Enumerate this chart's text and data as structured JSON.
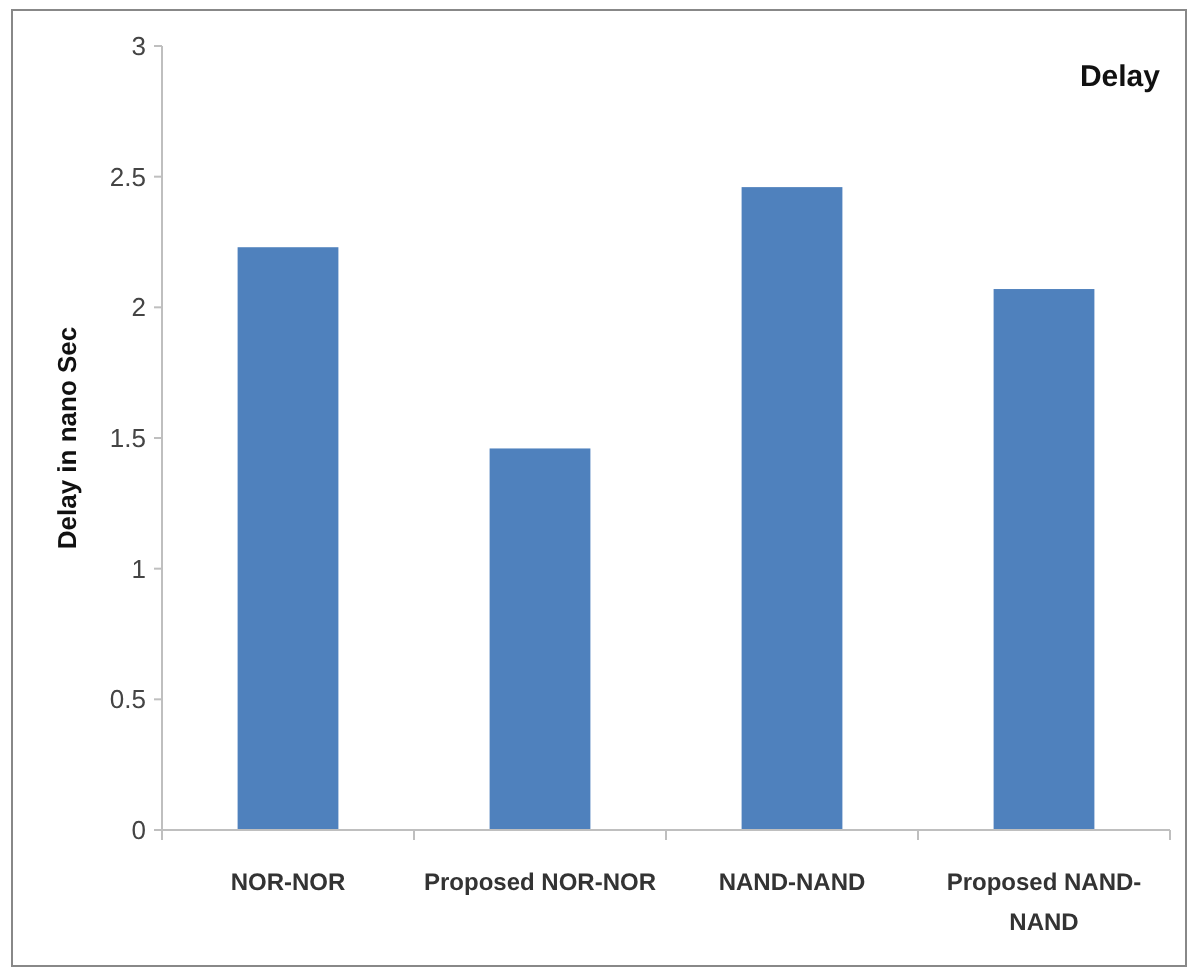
{
  "chart_data": {
    "type": "bar",
    "title": "Delay",
    "ylabel": "Delay in nano Sec",
    "categories": [
      "NOR-NOR",
      "Proposed NOR-NOR",
      "NAND-NAND",
      "Proposed NAND-NAND"
    ],
    "values": [
      2.23,
      1.46,
      2.46,
      2.07
    ],
    "color": "#4f81bd",
    "ylim": [
      0,
      3
    ],
    "yticks": [
      0,
      0.5,
      1,
      1.5,
      2,
      2.5,
      3
    ],
    "grid": false
  }
}
